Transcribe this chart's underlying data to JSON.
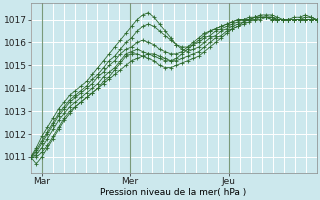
{
  "title": "Pression niveau de la mer( hPa )",
  "ylabel_values": [
    1011,
    1012,
    1013,
    1014,
    1015,
    1016,
    1017
  ],
  "ylim": [
    1010.3,
    1017.7
  ],
  "xlim": [
    0,
    52
  ],
  "xtick_positions": [
    2,
    18,
    36
  ],
  "xtick_labels": [
    "Mar",
    "Mer",
    "Jeu"
  ],
  "background_color": "#cce8ed",
  "grid_color": "#ffffff",
  "line_color": "#2d6a2d",
  "vline_color": "#7a9a7a",
  "vline_positions": [
    2,
    18,
    36
  ],
  "n_vgrid": 27,
  "series": [
    [
      1011.0,
      1010.7,
      1011.0,
      1011.4,
      1011.8,
      1012.2,
      1012.6,
      1012.9,
      1013.2,
      1013.4,
      1013.6,
      1013.8,
      1014.0,
      1014.3,
      1014.5,
      1014.8,
      1015.1,
      1015.4,
      1015.5,
      1015.5,
      1015.4,
      1015.3,
      1015.2,
      1015.0,
      1014.9,
      1014.9,
      1015.0,
      1015.1,
      1015.2,
      1015.3,
      1015.4,
      1015.6,
      1015.8,
      1016.0,
      1016.2,
      1016.4,
      1016.6,
      1016.7,
      1016.9,
      1017.0,
      1017.1,
      1017.2,
      1017.2,
      1017.2,
      1017.1,
      1017.0,
      1017.0,
      1017.1,
      1017.1,
      1017.2,
      1017.1,
      1017.0
    ],
    [
      1011.0,
      1011.0,
      1011.2,
      1011.5,
      1011.9,
      1012.3,
      1012.7,
      1013.0,
      1013.2,
      1013.4,
      1013.6,
      1013.8,
      1014.0,
      1014.2,
      1014.4,
      1014.6,
      1014.8,
      1015.0,
      1015.2,
      1015.3,
      1015.4,
      1015.5,
      1015.5,
      1015.4,
      1015.3,
      1015.2,
      1015.2,
      1015.3,
      1015.4,
      1015.5,
      1015.6,
      1015.8,
      1016.0,
      1016.2,
      1016.3,
      1016.5,
      1016.6,
      1016.7,
      1016.8,
      1016.9,
      1017.0,
      1017.0,
      1017.1,
      1017.1,
      1017.0,
      1017.0,
      1017.0,
      1017.0,
      1017.0,
      1017.1,
      1017.1,
      1017.0
    ],
    [
      1011.0,
      1011.1,
      1011.4,
      1011.8,
      1012.2,
      1012.6,
      1012.9,
      1013.2,
      1013.4,
      1013.6,
      1013.8,
      1014.0,
      1014.2,
      1014.5,
      1014.7,
      1014.9,
      1015.2,
      1015.5,
      1015.6,
      1015.7,
      1015.6,
      1015.5,
      1015.4,
      1015.3,
      1015.2,
      1015.2,
      1015.3,
      1015.5,
      1015.7,
      1015.9,
      1016.1,
      1016.3,
      1016.5,
      1016.6,
      1016.7,
      1016.8,
      1016.9,
      1017.0,
      1017.0,
      1017.0,
      1017.0,
      1017.1,
      1017.1,
      1017.1,
      1017.0,
      1017.0,
      1017.0,
      1017.0,
      1017.0,
      1017.0,
      1017.0,
      1017.0
    ],
    [
      1011.0,
      1011.2,
      1011.6,
      1012.0,
      1012.4,
      1012.8,
      1013.1,
      1013.4,
      1013.6,
      1013.8,
      1014.0,
      1014.2,
      1014.5,
      1014.7,
      1015.0,
      1015.2,
      1015.5,
      1015.7,
      1015.8,
      1016.0,
      1016.1,
      1016.0,
      1015.9,
      1015.7,
      1015.6,
      1015.5,
      1015.5,
      1015.6,
      1015.8,
      1016.0,
      1016.2,
      1016.4,
      1016.5,
      1016.6,
      1016.7,
      1016.8,
      1016.9,
      1017.0,
      1017.0,
      1017.0,
      1017.1,
      1017.1,
      1017.1,
      1017.1,
      1017.0,
      1017.0,
      1017.0,
      1017.0,
      1017.0,
      1017.0,
      1017.0,
      1017.0
    ],
    [
      1011.0,
      1011.3,
      1011.7,
      1012.1,
      1012.5,
      1012.9,
      1013.2,
      1013.5,
      1013.7,
      1013.9,
      1014.1,
      1014.4,
      1014.6,
      1014.9,
      1015.2,
      1015.4,
      1015.7,
      1016.0,
      1016.2,
      1016.5,
      1016.7,
      1016.8,
      1016.7,
      1016.5,
      1016.3,
      1016.1,
      1015.9,
      1015.8,
      1015.8,
      1015.9,
      1016.0,
      1016.2,
      1016.3,
      1016.5,
      1016.6,
      1016.7,
      1016.8,
      1016.9,
      1017.0,
      1017.1,
      1017.1,
      1017.1,
      1017.1,
      1017.0,
      1017.0,
      1017.0,
      1017.0,
      1017.0,
      1017.0,
      1017.0,
      1017.0,
      1017.0
    ],
    [
      1011.0,
      1011.4,
      1011.9,
      1012.3,
      1012.7,
      1013.1,
      1013.4,
      1013.7,
      1013.9,
      1014.1,
      1014.3,
      1014.6,
      1014.9,
      1015.2,
      1015.5,
      1015.8,
      1016.1,
      1016.4,
      1016.7,
      1017.0,
      1017.2,
      1017.3,
      1017.1,
      1016.8,
      1016.5,
      1016.2,
      1015.9,
      1015.7,
      1015.6,
      1015.7,
      1015.8,
      1016.0,
      1016.2,
      1016.3,
      1016.5,
      1016.6,
      1016.7,
      1016.8,
      1016.9,
      1017.0,
      1017.1,
      1017.1,
      1017.1,
      1017.0,
      1017.0,
      1017.0,
      1017.0,
      1017.0,
      1017.0,
      1017.0,
      1017.0,
      1017.0
    ]
  ]
}
